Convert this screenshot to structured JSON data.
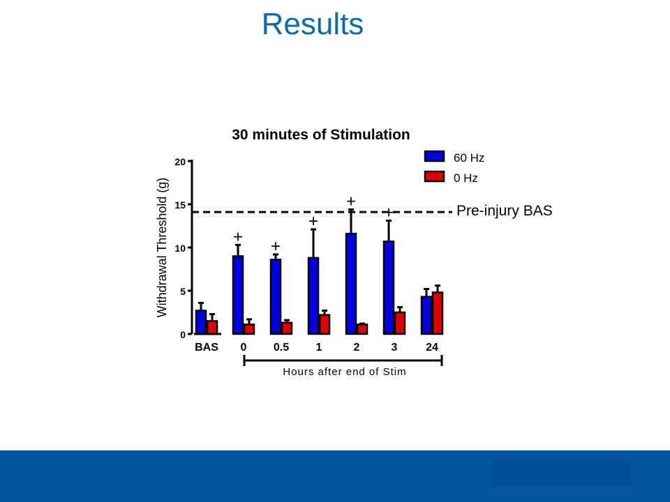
{
  "slide": {
    "title": "Results"
  },
  "chart_data": {
    "type": "bar",
    "title": "30 minutes of Stimulation",
    "ylabel": "Withdrawal Threshold (g)",
    "xlabel": "Hours after end of Stim",
    "ylim": [
      0,
      20
    ],
    "yticks": [
      0,
      5,
      10,
      15,
      20
    ],
    "categories": [
      "BAS",
      "0",
      "0.5",
      "1",
      "2",
      "3",
      "24"
    ],
    "series": [
      {
        "name": "60 Hz",
        "color": "#0000e0",
        "values": [
          2.7,
          9.0,
          8.6,
          8.8,
          11.6,
          10.7,
          4.3
        ],
        "errors": [
          0.9,
          1.3,
          0.6,
          3.3,
          2.8,
          2.4,
          0.9
        ]
      },
      {
        "name": "0 Hz",
        "color": "#e00000",
        "values": [
          1.5,
          1.1,
          1.3,
          2.2,
          1.1,
          2.5,
          4.8
        ],
        "errors": [
          0.8,
          0.6,
          0.3,
          0.5,
          0.1,
          0.6,
          0.8
        ]
      }
    ],
    "reference_line": {
      "label": "Pre-injury BAS",
      "value": 14.1
    },
    "significance_marker": "+",
    "significant_categories": [
      "0",
      "0.5",
      "1",
      "2",
      "3"
    ],
    "legend_position": "top-right"
  }
}
